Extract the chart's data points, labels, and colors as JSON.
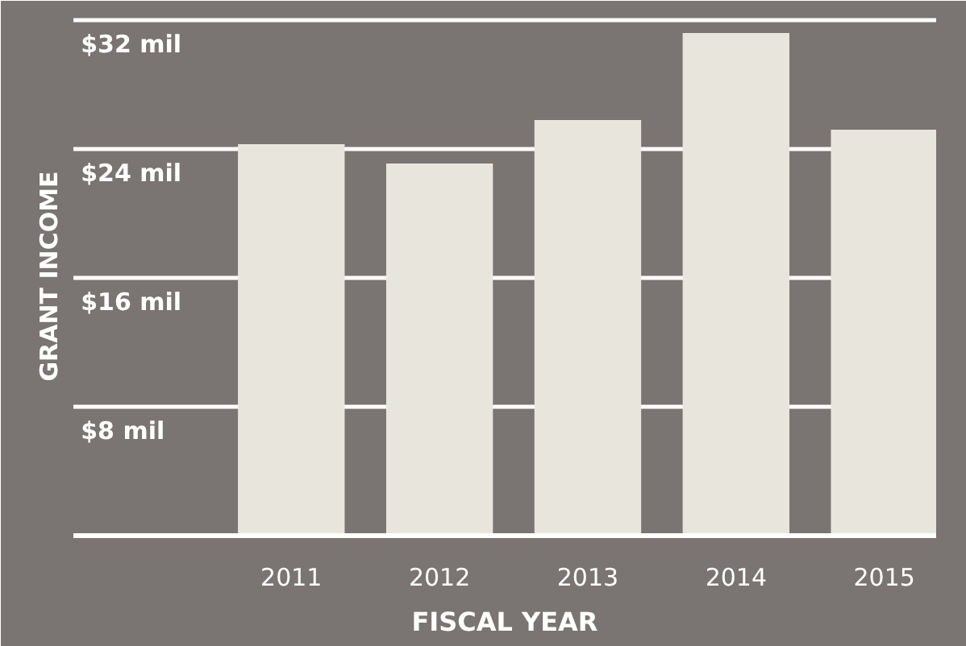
{
  "chart_data": {
    "type": "bar",
    "xlabel": "FISCAL YEAR",
    "ylabel": "GRANT INCOME",
    "categories": [
      "2011",
      "2012",
      "2013",
      "2014",
      "2015"
    ],
    "values": [
      24.3,
      23.1,
      25.8,
      31.2,
      25.2
    ],
    "color": "#e8e6dc",
    "ylim": [
      0,
      32.2
    ],
    "yticks": [
      {
        "value": 8,
        "label": "$8 mil"
      },
      {
        "value": 16,
        "label": "$16 mil"
      },
      {
        "value": 24,
        "label": "$24 mil"
      },
      {
        "value": 32,
        "label": "$32 mil"
      }
    ],
    "grid": "y"
  }
}
